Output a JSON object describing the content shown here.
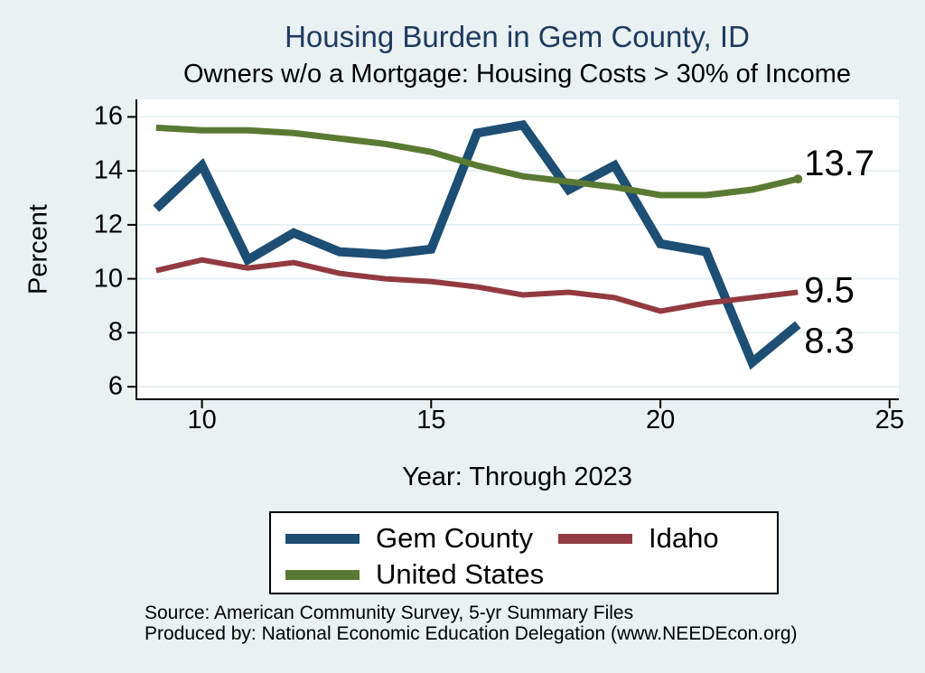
{
  "footer": {
    "source_line": "Source: American Community Survey, 5-yr Summary Files",
    "produced_line": "Produced by: National Economic Education Delegation (www.NEEDEcon.org)"
  },
  "colors": {
    "canvas_bg": "#e9f1f3",
    "plot_bg": "#ffffff",
    "gridline": "#e3edf2",
    "axis": "#000000",
    "title_text": "#1e3a5f"
  },
  "chart_data": {
    "type": "line",
    "title": "Housing Burden in Gem County, ID",
    "subtitle": "Owners w/o a Mortgage: Housing Costs > 30% of Income",
    "xlabel": "Year: Through 2023",
    "ylabel": "Percent",
    "x": [
      9,
      10,
      11,
      12,
      13,
      14,
      15,
      16,
      17,
      18,
      19,
      20,
      21,
      22,
      23
    ],
    "series": [
      {
        "name": "Gem County",
        "color": "#1d4e74",
        "stroke_width": 10,
        "values": [
          12.6,
          14.2,
          10.7,
          11.7,
          11.0,
          10.9,
          11.1,
          15.4,
          15.7,
          13.3,
          14.2,
          11.3,
          11.0,
          6.9,
          8.3
        ],
        "end_label": "8.3",
        "end_marker": false
      },
      {
        "name": "Idaho",
        "color": "#923a40",
        "stroke_width": 6,
        "values": [
          10.3,
          10.7,
          10.4,
          10.6,
          10.2,
          10.0,
          9.9,
          9.7,
          9.4,
          9.5,
          9.3,
          8.8,
          9.1,
          9.3,
          9.5
        ],
        "end_label": "9.5",
        "end_marker": false
      },
      {
        "name": "United States",
        "color": "#5a7a33",
        "stroke_width": 7,
        "values": [
          15.6,
          15.5,
          15.5,
          15.4,
          15.2,
          15.0,
          14.7,
          14.2,
          13.8,
          13.6,
          13.4,
          13.1,
          13.1,
          13.3,
          13.7
        ],
        "end_label": "13.7",
        "end_marker": true
      }
    ],
    "xlim": [
      8.55,
      25.2
    ],
    "ylim": [
      5.5,
      16.65
    ],
    "xticks": [
      10,
      15,
      20,
      25
    ],
    "yticks": [
      6,
      8,
      10,
      12,
      14,
      16
    ],
    "grid": "horizontal",
    "legend_position": "bottom"
  }
}
